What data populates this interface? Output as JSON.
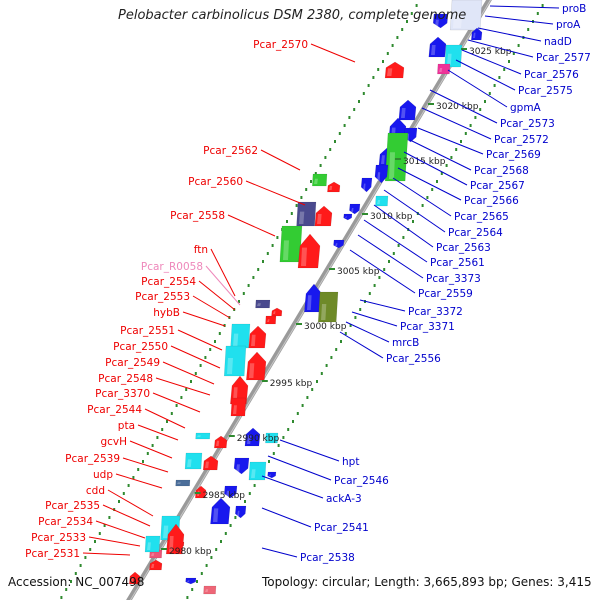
{
  "title": "Pelobacter carbinolicus DSM 2380, complete genome",
  "footer": {
    "accession": "Accession: NC_007498",
    "topology": "Topology: circular; Length: 3,665,893 bp; Genes: 3,415"
  },
  "colors": {
    "background": "#ffffff",
    "backbone": "#9a9a9a",
    "tick": "#2f8a2f",
    "gene_red": "#ff1a1a",
    "gene_blue": "#1818ee",
    "gene_cyan": "#20e0ee",
    "gene_green": "#33cc33",
    "gene_olive": "#6e8a28",
    "gene_navy": "#4a4a8e",
    "gene_pink": "#ee3399",
    "gene_steelblue": "#4b6e9a",
    "label_left": "#ee0000",
    "label_right": "#0000cc",
    "label_rna": "#ee88bb"
  },
  "kbp_ticks": [
    "3025 kbp",
    "3020 kbp",
    "3015 kbp",
    "3010 kbp",
    "3005 kbp",
    "3000 kbp",
    "2995 kbp",
    "2990 kbp",
    "2985 kbp",
    "2980 kbp"
  ],
  "left_labels": [
    {
      "text": "Pcar_2570",
      "kind": "protein"
    },
    {
      "text": "Pcar_2562",
      "kind": "protein"
    },
    {
      "text": "Pcar_2560",
      "kind": "protein"
    },
    {
      "text": "Pcar_2558",
      "kind": "protein"
    },
    {
      "text": "ftn",
      "kind": "protein"
    },
    {
      "text": "Pcar_R0058",
      "kind": "rna"
    },
    {
      "text": "Pcar_2554",
      "kind": "protein"
    },
    {
      "text": "Pcar_2553",
      "kind": "protein"
    },
    {
      "text": "hybB",
      "kind": "protein"
    },
    {
      "text": "Pcar_2551",
      "kind": "protein"
    },
    {
      "text": "Pcar_2550",
      "kind": "protein"
    },
    {
      "text": "Pcar_2549",
      "kind": "protein"
    },
    {
      "text": "Pcar_2548",
      "kind": "protein"
    },
    {
      "text": "Pcar_3370",
      "kind": "protein"
    },
    {
      "text": "Pcar_2544",
      "kind": "protein"
    },
    {
      "text": "pta",
      "kind": "protein"
    },
    {
      "text": "gcvH",
      "kind": "protein"
    },
    {
      "text": "Pcar_2539",
      "kind": "protein"
    },
    {
      "text": "udp",
      "kind": "protein"
    },
    {
      "text": "cdd",
      "kind": "protein"
    },
    {
      "text": "Pcar_2535",
      "kind": "protein"
    },
    {
      "text": "Pcar_2534",
      "kind": "protein"
    },
    {
      "text": "Pcar_2533",
      "kind": "protein"
    },
    {
      "text": "Pcar_2531",
      "kind": "protein"
    }
  ],
  "right_labels": [
    {
      "text": "proB"
    },
    {
      "text": "proA"
    },
    {
      "text": "nadD"
    },
    {
      "text": "Pcar_2577"
    },
    {
      "text": "Pcar_2576"
    },
    {
      "text": "Pcar_2575"
    },
    {
      "text": "gpmA"
    },
    {
      "text": "Pcar_2573"
    },
    {
      "text": "Pcar_2572"
    },
    {
      "text": "Pcar_2569"
    },
    {
      "text": "Pcar_2568"
    },
    {
      "text": "Pcar_2567"
    },
    {
      "text": "Pcar_2566"
    },
    {
      "text": "Pcar_2565"
    },
    {
      "text": "Pcar_2564"
    },
    {
      "text": "Pcar_2563"
    },
    {
      "text": "Pcar_2561"
    },
    {
      "text": "Pcar_3373"
    },
    {
      "text": "Pcar_2559"
    },
    {
      "text": "Pcar_3372"
    },
    {
      "text": "Pcar_3371"
    },
    {
      "text": "mrcB"
    },
    {
      "text": "Pcar_2556"
    },
    {
      "text": "hpt"
    },
    {
      "text": "Pcar_2546"
    },
    {
      "text": "ackA-3"
    },
    {
      "text": "Pcar_2541"
    },
    {
      "text": "Pcar_2538"
    }
  ]
}
